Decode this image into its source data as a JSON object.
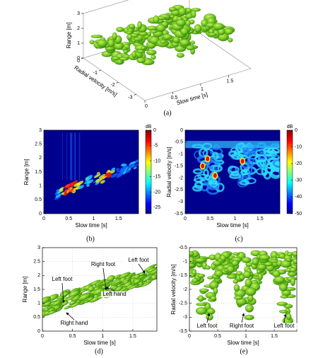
{
  "panels": [
    {
      "caption": "(a)",
      "xlabel": "Slow time [s]",
      "ylabel": "Radial velocity [m/s]",
      "zlabel": "Range [m]",
      "xlim": [
        0,
        1.9
      ],
      "xticks": [
        0,
        0.5,
        1,
        1.5
      ],
      "ylim": [
        -3.5,
        0
      ],
      "yticks": [
        0,
        -1,
        -2,
        -3
      ],
      "zlim": [
        0,
        3
      ],
      "zticks": [
        0,
        1,
        2,
        3
      ]
    },
    {
      "caption": "(b)",
      "xlabel": "Slow time [s]",
      "ylabel": "Range [m]",
      "xlim": [
        0,
        1.9
      ],
      "xticks": [
        0,
        0.5,
        1,
        1.5
      ],
      "ylim": [
        0,
        3
      ],
      "yticks": [
        0,
        0.5,
        1,
        1.5,
        2,
        2.5,
        3
      ],
      "colorbar": {
        "title": "dB",
        "lim": [
          -27,
          0
        ],
        "ticks": [
          0,
          -5,
          -10,
          -15,
          -20,
          -25
        ]
      }
    },
    {
      "caption": "(c)",
      "xlabel": "Slow time [s]",
      "ylabel": "Radial velocity [m/s]",
      "xlim": [
        0,
        1.9
      ],
      "xticks": [
        0,
        0.5,
        1,
        1.5
      ],
      "ylim": [
        -3.5,
        0
      ],
      "yticks": [
        0,
        -0.5,
        -1,
        -1.5,
        -2,
        -2.5,
        -3,
        -3.5
      ],
      "colorbar": {
        "title": "dB",
        "lim": [
          -50,
          0
        ],
        "ticks": [
          0,
          -10,
          -20,
          -30,
          -40,
          -50
        ]
      }
    },
    {
      "caption": "(d)",
      "xlabel": "Slow time [s]",
      "ylabel": "Range [m]",
      "xlim": [
        0,
        1.9
      ],
      "xticks": [
        0,
        0.5,
        1,
        1.5
      ],
      "ylim": [
        0,
        3
      ],
      "yticks": [
        0,
        0.5,
        1,
        1.5,
        2,
        2.5,
        3
      ],
      "annotations": [
        "Left foot",
        "Right foot",
        "Left foot",
        "Left hand",
        "Right hand"
      ]
    },
    {
      "caption": "(e)",
      "xlabel": "Slow time [s]",
      "ylabel": "Radial velocity [m/s]",
      "xlim": [
        0,
        1.9
      ],
      "xticks": [
        0,
        0.5,
        1,
        1.5
      ],
      "ylim": [
        -3.5,
        -0.5
      ],
      "yticks": [
        -0.5,
        -1,
        -1.5,
        -2,
        -2.5,
        -3,
        -3.5
      ],
      "annotations": [
        "Left foot",
        "Right foot",
        "Left foot"
      ]
    }
  ]
}
